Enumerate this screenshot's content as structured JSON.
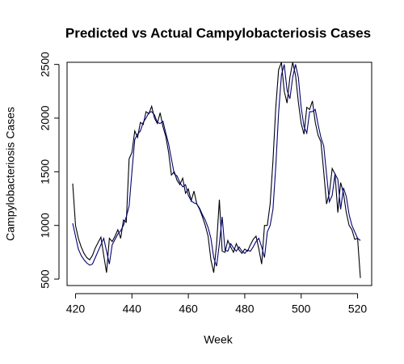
{
  "chart_data": {
    "type": "line",
    "title": "Predicted vs Actual Campylobacteriosis Cases",
    "xlabel": "Week",
    "ylabel": "Campylobacteriosis Cases",
    "x": [
      419,
      420,
      421,
      422,
      423,
      424,
      425,
      426,
      427,
      428,
      429,
      430,
      431,
      432,
      433,
      434,
      435,
      436,
      437,
      438,
      439,
      440,
      441,
      442,
      443,
      444,
      445,
      446,
      447,
      448,
      449,
      450,
      451,
      452,
      453,
      454,
      455,
      456,
      457,
      458,
      459,
      460,
      461,
      462,
      463,
      464,
      465,
      466,
      467,
      468,
      469,
      470,
      471,
      472,
      473,
      474,
      475,
      476,
      477,
      478,
      479,
      480,
      481,
      482,
      483,
      484,
      485,
      486,
      487,
      488,
      489,
      490,
      491,
      492,
      493,
      494,
      495,
      496,
      497,
      498,
      499,
      500,
      501,
      502,
      503,
      504,
      505,
      506,
      507,
      508,
      509,
      510,
      511,
      512,
      513,
      514,
      515,
      516,
      517,
      518,
      519,
      520,
      521
    ],
    "series": [
      {
        "color": "#000000",
        "values": [
          1390,
          1000,
          880,
          800,
          740,
          700,
          680,
          720,
          790,
          840,
          890,
          720,
          560,
          880,
          850,
          900,
          960,
          880,
          1050,
          1030,
          1620,
          1680,
          1880,
          1820,
          1960,
          1940,
          2060,
          2040,
          2110,
          2000,
          1950,
          2050,
          1920,
          1830,
          1680,
          1470,
          1500,
          1420,
          1380,
          1440,
          1300,
          1340,
          1230,
          1320,
          1200,
          1150,
          1080,
          1000,
          900,
          680,
          560,
          820,
          1240,
          760,
          750,
          860,
          800,
          750,
          830,
          770,
          740,
          780,
          760,
          820,
          870,
          900,
          780,
          640,
          1000,
          1000,
          1200,
          1600,
          2100,
          2450,
          2520,
          2250,
          2140,
          2380,
          2520,
          2400,
          2150,
          1950,
          1850,
          2100,
          2080,
          2160,
          1960,
          1840,
          1780,
          1500,
          1200,
          1300,
          1530,
          1480,
          1120,
          1400,
          1300,
          1120,
          1000,
          960,
          870,
          880,
          510
        ]
      },
      {
        "color": "#000080",
        "values": [
          1020,
          900,
          780,
          720,
          680,
          650,
          630,
          640,
          700,
          760,
          820,
          880,
          760,
          640,
          820,
          870,
          920,
          950,
          1000,
          1080,
          1180,
          1500,
          1800,
          1850,
          1880,
          1960,
          2000,
          2050,
          2060,
          2030,
          1960,
          1950,
          1970,
          1860,
          1760,
          1620,
          1480,
          1460,
          1400,
          1360,
          1380,
          1280,
          1230,
          1210,
          1200,
          1160,
          1100,
          1050,
          980,
          880,
          700,
          620,
          830,
          1080,
          770,
          760,
          830,
          790,
          760,
          800,
          760,
          740,
          770,
          760,
          800,
          850,
          880,
          800,
          700,
          940,
          1000,
          1150,
          1550,
          2050,
          2400,
          2500,
          2260,
          2180,
          2380,
          2500,
          2380,
          2100,
          1920,
          1860,
          2060,
          2060,
          2080,
          1940,
          1820,
          1740,
          1480,
          1220,
          1280,
          1480,
          1430,
          1150,
          1350,
          1270,
          1100,
          1000,
          940,
          880,
          860
        ]
      }
    ],
    "xlim": [
      417,
      525
    ],
    "xticks": [
      420,
      440,
      460,
      480,
      500,
      520
    ],
    "ylim": [
      440,
      2520
    ],
    "yticks": [
      500,
      1000,
      1500,
      2000,
      2500
    ]
  }
}
